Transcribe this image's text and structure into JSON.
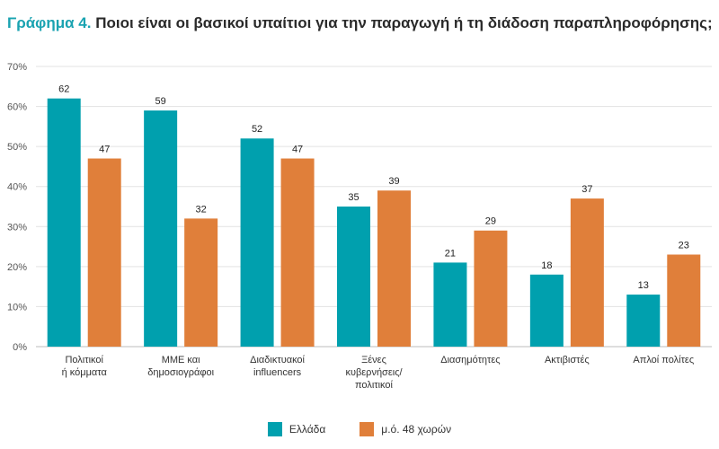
{
  "header": {
    "prefix": "Γράφημα 4.",
    "title": "Ποιοι είναι οι βασικοί υπαίτιοι για την παραγωγή ή τη διάδοση παραπληροφόρησης;"
  },
  "colors": {
    "greece": "#00a0ae",
    "average": "#e07f3a",
    "grid": "#e3e3e3",
    "axis": "#bdbdbd"
  },
  "chart_data": {
    "type": "bar",
    "categories": [
      [
        "Πολιτικοί",
        "ή κόμματα"
      ],
      [
        "ΜΜΕ και",
        "δημοσιογράφοι"
      ],
      [
        "Διαδικτυακοί",
        "influencers"
      ],
      [
        "Ξένες",
        "κυβερνήσεις/",
        "πολιτικοί"
      ],
      [
        "Διασημότητες"
      ],
      [
        "Ακτιβιστές"
      ],
      [
        "Απλοί πολίτες"
      ]
    ],
    "series": [
      {
        "name": "Ελλάδα",
        "values": [
          62,
          59,
          52,
          35,
          21,
          18,
          13
        ]
      },
      {
        "name": "μ.ό. 48 χωρών",
        "values": [
          47,
          32,
          47,
          39,
          29,
          37,
          23
        ]
      }
    ],
    "ylim": [
      0,
      70
    ],
    "yticks": [
      "0%",
      "10%",
      "20%",
      "30%",
      "40%",
      "50%",
      "60%",
      "70%"
    ],
    "legend_position": "bottom-center",
    "grid": true
  }
}
